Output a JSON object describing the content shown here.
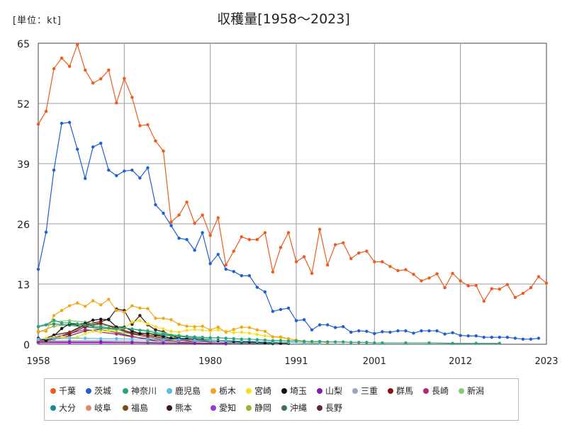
{
  "header": {
    "unit": "[単位：kt]",
    "title": "収穫量[1958～2023]"
  },
  "chart_data": {
    "type": "line",
    "title": "収穫量[1958～2023]",
    "unit": "[単位：kt]",
    "x_ticks": [
      "1958",
      "1969",
      "1980",
      "1991",
      "2001",
      "2012",
      "2023"
    ],
    "y_ticks": [
      "0",
      "13",
      "26",
      "39",
      "52",
      "65"
    ],
    "xlim": [
      1958,
      2023
    ],
    "ylim": [
      0,
      65
    ],
    "grid": true,
    "legend_position": "bottom",
    "series": [
      {
        "name": "千葉",
        "color": "#ed5b1e",
        "x": [
          1958,
          1959,
          1960,
          1961,
          1962,
          1963,
          1964,
          1965,
          1966,
          1967,
          1968,
          1969,
          1970,
          1971,
          1972,
          1973,
          1974,
          1975,
          1976,
          1977,
          1978,
          1979,
          1980,
          1981,
          1982,
          1983,
          1984,
          1985,
          1986,
          1987,
          1988,
          1989,
          1990,
          1991,
          1992,
          1993,
          1994,
          1995,
          1996,
          1997,
          1998,
          1999,
          2000,
          2001,
          2002,
          2003,
          2004,
          2005,
          2006,
          2007,
          2008,
          2009,
          2010,
          2011,
          2012,
          2013,
          2014,
          2015,
          2016,
          2017,
          2018,
          2019,
          2020,
          2021,
          2022,
          2023
        ],
        "values": [
          47.5,
          50.3,
          59.5,
          61.8,
          60,
          64.7,
          59.2,
          56.4,
          57.3,
          59.2,
          52.1,
          57.4,
          53.3,
          47.2,
          47.4,
          43.9,
          41.7,
          26.4,
          27.9,
          30.7,
          26.1,
          27.9,
          23.5,
          27.3,
          17.1,
          20.1,
          23.2,
          22.6,
          22.6,
          24.1,
          15.6,
          20.9,
          24.1,
          17.8,
          18.9,
          15.3,
          24.8,
          17.1,
          21.5,
          21.9,
          18.5,
          19.7,
          20.1,
          17.8,
          17.8,
          16.8,
          15.9,
          16.1,
          15.1,
          13.7,
          14.3,
          15.2,
          12.2,
          15.3,
          13.7,
          12.6,
          12.7,
          9.3,
          12,
          11.9,
          12.9,
          10.1,
          11,
          12.2,
          14.6,
          13.2
        ]
      },
      {
        "name": "茨城",
        "color": "#1f5fcf",
        "x": [
          1958,
          1959,
          1960,
          1961,
          1962,
          1963,
          1964,
          1965,
          1966,
          1967,
          1968,
          1969,
          1970,
          1971,
          1972,
          1973,
          1974,
          1975,
          1976,
          1977,
          1978,
          1979,
          1980,
          1981,
          1982,
          1983,
          1984,
          1985,
          1986,
          1987,
          1988,
          1989,
          1990,
          1991,
          1992,
          1993,
          1994,
          1995,
          1996,
          1997,
          1998,
          1999,
          2000,
          2001,
          2002,
          2003,
          2004,
          2005,
          2006,
          2007,
          2008,
          2009,
          2010,
          2011,
          2012,
          2013,
          2014,
          2015,
          2016,
          2017,
          2018,
          2019,
          2020,
          2021,
          2022
        ],
        "values": [
          16.2,
          24.2,
          37.6,
          47.7,
          47.9,
          42.1,
          35.8,
          42.6,
          43.4,
          37.6,
          36.4,
          37.4,
          37.6,
          35.9,
          38.1,
          30.1,
          28.3,
          25.6,
          22.9,
          22.6,
          20.3,
          24.1,
          17.4,
          19.4,
          16.2,
          15.7,
          14.8,
          14.8,
          12.3,
          11.3,
          7.1,
          7.5,
          7.8,
          5.1,
          5.3,
          3.1,
          4.2,
          4.2,
          3.6,
          3.8,
          2.6,
          2.9,
          2.8,
          2.3,
          2.7,
          2.6,
          2.9,
          2.9,
          2.4,
          2.9,
          2.9,
          2.9,
          2.2,
          2.5,
          1.9,
          1.8,
          1.8,
          1.5,
          1.5,
          1.5,
          1.5,
          1.3,
          1.1,
          1.1,
          1.3
        ]
      },
      {
        "name": "神奈川",
        "color": "#2aa37a",
        "x": [
          1958,
          1959,
          1960,
          1961,
          1962,
          1963,
          1964,
          1965,
          1966,
          1967,
          1968,
          1969,
          1970,
          1971,
          1972,
          1973,
          1974,
          1975,
          1976,
          1977,
          1978,
          1979,
          1980,
          1981,
          1982,
          1983,
          1984,
          1985,
          1986,
          1987,
          1988,
          1989,
          1990,
          1991,
          1992,
          1993,
          1994,
          1995,
          1996,
          1997,
          1998,
          1999,
          2000,
          2001,
          2002,
          2005,
          2008,
          2011,
          2014,
          2017
        ],
        "values": [
          3.8,
          4.2,
          5.2,
          4.6,
          4.6,
          4.4,
          4.1,
          3.9,
          3.8,
          3.5,
          3.3,
          3.5,
          3.3,
          3,
          2.8,
          2.4,
          2.2,
          1.9,
          1.8,
          1.7,
          1.6,
          1.5,
          1.4,
          1.4,
          1.3,
          1.2,
          1.1,
          1.1,
          1.0,
          0.9,
          0.8,
          0.8,
          0.7,
          0.7,
          0.6,
          0.6,
          0.6,
          0.5,
          0.5,
          0.5,
          0.4,
          0.4,
          0.4,
          0.3,
          0.3,
          0.3,
          0.3,
          0.2,
          0.2,
          0.2
        ]
      },
      {
        "name": "鹿児島",
        "color": "#5bbbe8",
        "x": [
          1958,
          1960,
          1962,
          1964,
          1966,
          1968,
          1970,
          1972,
          1974,
          1976,
          1978,
          1980,
          1982,
          1984,
          1986,
          1988,
          1990,
          1992,
          1994
        ],
        "values": [
          1.1,
          1.2,
          1.3,
          1.3,
          1.2,
          1.2,
          1.1,
          1.1,
          1,
          1,
          0.9,
          0.9,
          0.8,
          0.7,
          0.6,
          0.5,
          0.4,
          0.3,
          0.2
        ]
      },
      {
        "name": "栃木",
        "color": "#f0a818",
        "x": [
          1958,
          1959,
          1960,
          1961,
          1962,
          1963,
          1964,
          1965,
          1966,
          1967,
          1968,
          1969,
          1970,
          1971,
          1972,
          1973,
          1974,
          1975,
          1976,
          1977,
          1978,
          1979,
          1980,
          1981,
          1982,
          1983,
          1984,
          1985,
          1986,
          1987,
          1988,
          1989,
          1990,
          1991,
          1992,
          1993,
          1994,
          1995
        ],
        "values": [
          2.8,
          2.8,
          6.2,
          7.3,
          8.3,
          8.9,
          8.2,
          9.4,
          8.5,
          9.7,
          7.3,
          6.9,
          8.3,
          7.8,
          7.7,
          5.6,
          5.6,
          5.3,
          4.3,
          3.9,
          3.8,
          3.9,
          3.1,
          3.7,
          2.6,
          3.2,
          3.7,
          3.6,
          3.1,
          2.8,
          1.6,
          1.6,
          1.2,
          0.9,
          0.7,
          0.5,
          0.5,
          0.4
        ]
      },
      {
        "name": "宮崎",
        "color": "#f5e020",
        "x": [
          1958,
          1959,
          1960,
          1961,
          1962,
          1963,
          1964,
          1965,
          1966,
          1967,
          1968,
          1969,
          1970,
          1971,
          1972,
          1973,
          1974,
          1975,
          1976,
          1977,
          1978,
          1979,
          1980,
          1981,
          1982,
          1983,
          1984,
          1985,
          1986,
          1987,
          1988,
          1989,
          1990,
          1991,
          1992,
          1993
        ],
        "values": [
          1,
          1.3,
          1.5,
          1.6,
          1.4,
          1.5,
          2.3,
          2.8,
          2.6,
          2.9,
          3.1,
          3.5,
          4.8,
          5.1,
          4.4,
          3.8,
          3.3,
          2.8,
          2.6,
          3,
          3.2,
          3,
          2.9,
          3.1,
          2.8,
          2.5,
          2.6,
          2.4,
          2.1,
          1.8,
          1.6,
          1.4,
          1.2,
          0.8,
          0.6,
          0.4
        ]
      },
      {
        "name": "埼玉",
        "color": "#111111",
        "x": [
          1958,
          1959,
          1960,
          1961,
          1962,
          1963,
          1964,
          1965,
          1966,
          1967,
          1968,
          1969,
          1970,
          1971,
          1972,
          1973,
          1974,
          1975,
          1976,
          1977,
          1978,
          1979,
          1980,
          1981,
          1982,
          1983,
          1984,
          1985,
          1986,
          1987,
          1988,
          1989,
          1990
        ],
        "values": [
          1.3,
          0.8,
          1.8,
          3.4,
          4.4,
          4.3,
          4.5,
          5.2,
          5.4,
          5.3,
          3.7,
          3.7,
          2.9,
          2.3,
          2.4,
          2,
          1.7,
          1.3,
          1.2,
          1.2,
          1.1,
          1,
          0.9,
          0.8,
          0.7,
          0.6,
          0.5,
          0.5,
          0.4,
          0.3,
          0.3,
          0.2,
          0.2
        ]
      },
      {
        "name": "山梨",
        "color": "#8b1aa6",
        "x": [
          1958,
          1962,
          1966,
          1970,
          1974,
          1978,
          1982
        ],
        "values": [
          0.5,
          0.5,
          0.5,
          0.4,
          0.3,
          0.2,
          0.1
        ]
      },
      {
        "name": "三重",
        "color": "#9aa6b8",
        "x": [
          1958,
          1962,
          1966,
          1970,
          1974,
          1978,
          1982,
          1986
        ],
        "values": [
          0.7,
          0.8,
          0.8,
          0.7,
          0.6,
          0.5,
          0.4,
          0.3
        ]
      },
      {
        "name": "群馬",
        "color": "#8a1111",
        "x": [
          1958,
          1960,
          1962,
          1964,
          1966,
          1968,
          1970,
          1972,
          1974,
          1976,
          1978,
          1980
        ],
        "values": [
          0.9,
          1.4,
          2.2,
          3.8,
          4.5,
          3.6,
          2.4,
          1.9,
          1.3,
          0.9,
          0.6,
          0.4
        ]
      },
      {
        "name": "長崎",
        "color": "#b0287a",
        "x": [
          1958,
          1960,
          1962,
          1964,
          1966,
          1968,
          1970,
          1972,
          1974,
          1976,
          1978
        ],
        "values": [
          0.8,
          1.5,
          2.3,
          3.2,
          2.6,
          2.2,
          1.6,
          1.2,
          0.8,
          0.5,
          0.3
        ]
      },
      {
        "name": "新潟",
        "color": "#84c978",
        "x": [
          1958,
          1960,
          1962,
          1964,
          1966,
          1968,
          1970,
          1972,
          1974,
          1976,
          1978,
          1980
        ],
        "values": [
          3.9,
          4.9,
          5.1,
          4.8,
          4.1,
          3.8,
          3.3,
          3,
          2.4,
          1.9,
          1.5,
          1.1
        ]
      },
      {
        "name": "大分",
        "color": "#1f8a8a",
        "x": [
          1958,
          1960,
          1962,
          1964,
          1966,
          1968,
          1970,
          1972,
          1974,
          1976,
          1978,
          1980
        ],
        "values": [
          3.8,
          4.4,
          4.1,
          3.7,
          3.5,
          3.2,
          2.6,
          2.3,
          2,
          1.7,
          1.4,
          1.1
        ]
      },
      {
        "name": "岐阜",
        "color": "#e08a62",
        "x": [
          1958,
          1962,
          1966,
          1970,
          1974,
          1978
        ],
        "values": [
          0.4,
          0.5,
          0.5,
          0.4,
          0.3,
          0.2
        ]
      },
      {
        "name": "福島",
        "color": "#7a4a1f",
        "x": [
          1958,
          1960,
          1962,
          1964,
          1966,
          1968,
          1970,
          1972,
          1974,
          1976
        ],
        "values": [
          0.6,
          1.2,
          2.5,
          4.1,
          4.6,
          3.3,
          2.2,
          1.6,
          1,
          0.6
        ]
      },
      {
        "name": "熊本",
        "color": "#3a1a1a",
        "x": [
          1958,
          1960,
          1962,
          1964,
          1966,
          1967,
          1968,
          1969,
          1970,
          1971,
          1972,
          1973,
          1974,
          1975,
          1976,
          1977,
          1978,
          1980,
          1982
        ],
        "values": [
          0.6,
          2,
          2.6,
          4.3,
          4.9,
          5.4,
          7.6,
          7.3,
          4.3,
          6.2,
          4.2,
          3.1,
          2.7,
          1.9,
          1.3,
          1,
          0.9,
          0.6,
          0.3
        ]
      },
      {
        "name": "愛知",
        "color": "#9a3ad6",
        "x": [
          1958,
          1962,
          1966,
          1970,
          1974,
          1978,
          1982
        ],
        "values": [
          0.3,
          0.3,
          0.3,
          0.3,
          0.2,
          0.2,
          0.1
        ]
      },
      {
        "name": "静岡",
        "color": "#9bb52a",
        "x": [
          1958,
          1960,
          1962,
          1964,
          1966,
          1968,
          1970,
          1972,
          1974,
          1976,
          1978,
          1980
        ],
        "values": [
          2.6,
          3.9,
          4.3,
          3.9,
          3.2,
          2.6,
          2.3,
          2,
          1.6,
          1.3,
          1.1,
          0.9
        ]
      },
      {
        "name": "沖縄",
        "color": "#3f6e6e",
        "x": [
          1972,
          1976,
          1980,
          1984,
          1988
        ],
        "values": [
          0.3,
          0.3,
          0.2,
          0.2,
          0.1
        ]
      },
      {
        "name": "長野",
        "color": "#5a2a3a",
        "x": [
          1958,
          1960,
          1962,
          1964,
          1966,
          1968,
          1970,
          1972,
          1974
        ],
        "values": [
          0.4,
          1.1,
          1.8,
          2.9,
          3.2,
          2.5,
          1.7,
          1,
          0.5
        ]
      }
    ]
  }
}
